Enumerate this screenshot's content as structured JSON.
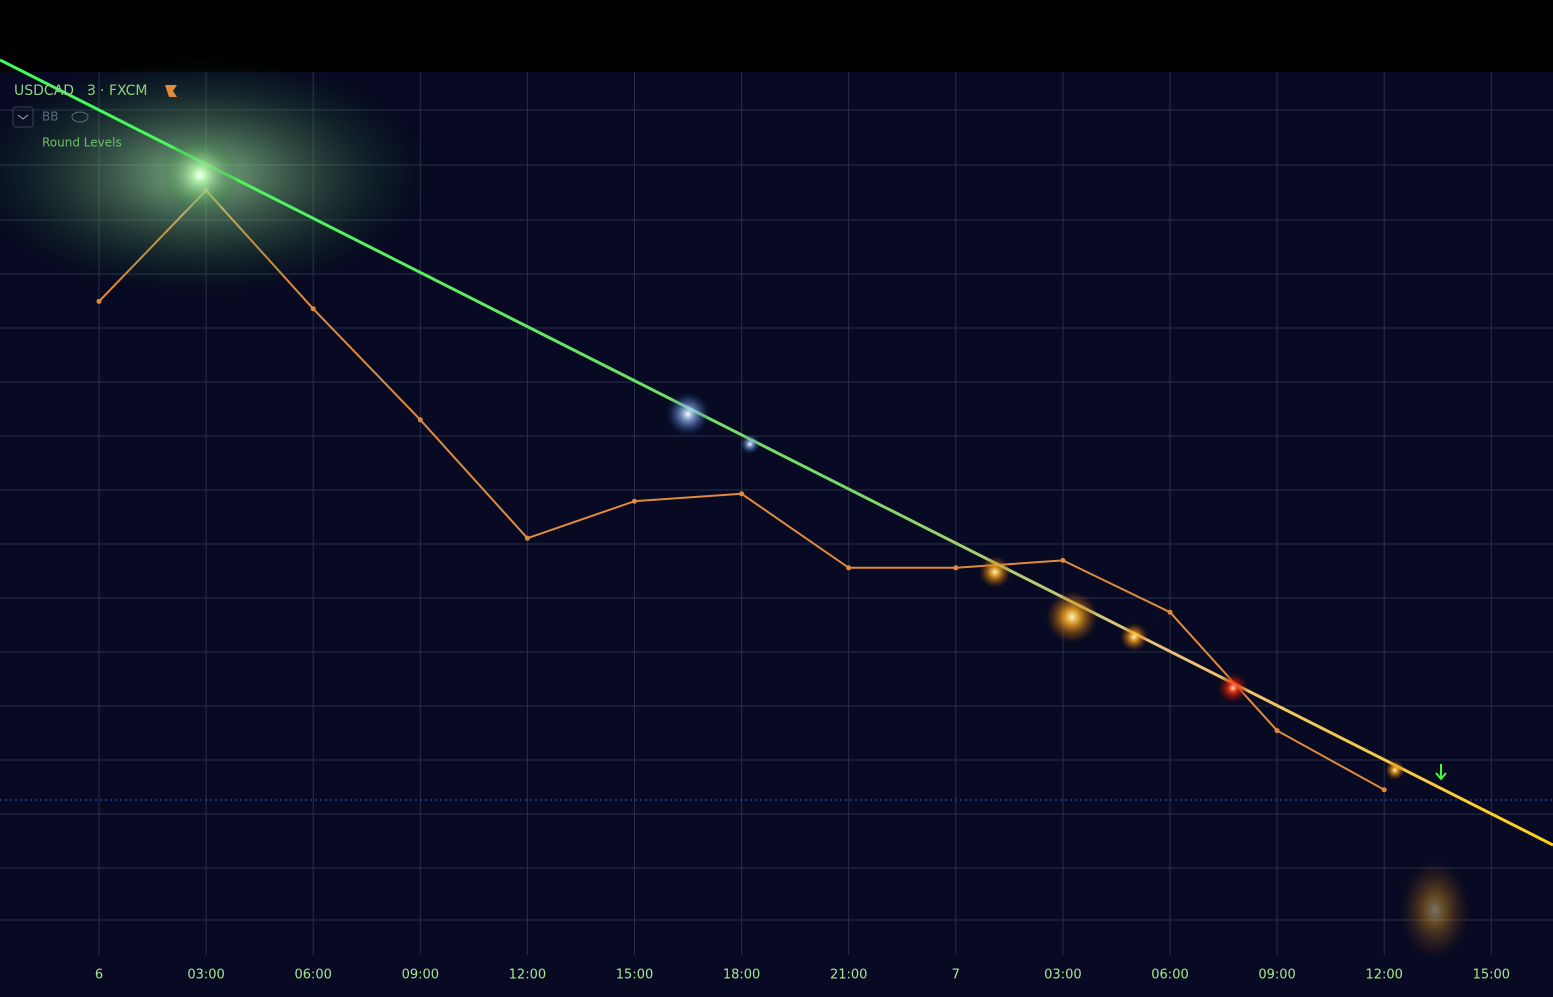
{
  "header": {
    "symbol": "USDCAD",
    "interval": "3",
    "exchange": "FXCM",
    "indicators": [
      "BB",
      "Round Levels"
    ]
  },
  "chart_data": {
    "type": "line",
    "categories": [
      "6",
      "03:00",
      "06:00",
      "09:00",
      "12:00",
      "15:00",
      "18:00",
      "21:00",
      "7",
      "03:00",
      "06:00",
      "09:00",
      "12:00",
      "15:00"
    ],
    "series": [
      {
        "name": "USDCAD",
        "color": "#e08a3c",
        "values": [
          1.3689,
          1.3704,
          1.3688,
          1.3673,
          1.3657,
          1.3662,
          1.3663,
          1.3653,
          1.3653,
          1.3654,
          1.3647,
          1.3631,
          1.3623,
          null
        ]
      }
    ],
    "ylim": [
      1.36,
      1.372
    ],
    "grid": true
  }
}
